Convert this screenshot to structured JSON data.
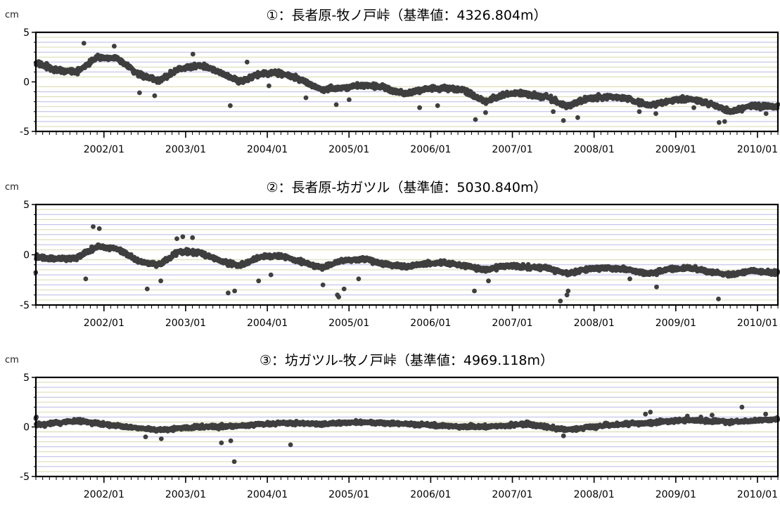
{
  "chart_data": [
    {
      "type": "scatter",
      "title": "①：長者原-牧ノ戸峠（基準値：4326.804m）",
      "ylabel": "cm",
      "ylim": [
        -5,
        5
      ],
      "y_ticks": [
        "5",
        "0",
        "-5"
      ],
      "x_range": [
        "2001-03",
        "2010-04"
      ],
      "x_tick_labels": [
        "2002/01",
        "2003/01",
        "2004/01",
        "2005/01",
        "2006/01",
        "2007/01",
        "2008/01",
        "2009/01",
        "2010/01"
      ],
      "grid": true,
      "marker_color": "#3f3f3f",
      "series": [
        {
          "trend_points": [
            [
              "2001-03",
              1.9
            ],
            [
              "2001-06",
              1.2
            ],
            [
              "2001-09",
              1.0
            ],
            [
              "2001-12",
              2.5
            ],
            [
              "2002-03",
              2.4
            ],
            [
              "2002-06",
              0.8
            ],
            [
              "2002-09",
              0.1
            ],
            [
              "2002-12",
              1.3
            ],
            [
              "2003-03",
              1.7
            ],
            [
              "2003-06",
              1.0
            ],
            [
              "2003-09",
              0.0
            ],
            [
              "2003-12",
              0.8
            ],
            [
              "2004-03",
              0.9
            ],
            [
              "2004-06",
              0.2
            ],
            [
              "2004-09",
              -0.8
            ],
            [
              "2004-12",
              -0.6
            ],
            [
              "2005-03",
              -0.3
            ],
            [
              "2005-06",
              -0.5
            ],
            [
              "2005-09",
              -1.2
            ],
            [
              "2005-12",
              -0.7
            ],
            [
              "2006-03",
              -0.6
            ],
            [
              "2006-06",
              -0.9
            ],
            [
              "2006-09",
              -2.0
            ],
            [
              "2006-12",
              -1.2
            ],
            [
              "2007-03",
              -1.2
            ],
            [
              "2007-06",
              -1.5
            ],
            [
              "2007-09",
              -2.5
            ],
            [
              "2007-12",
              -1.7
            ],
            [
              "2008-03",
              -1.5
            ],
            [
              "2008-06",
              -1.7
            ],
            [
              "2008-09",
              -2.4
            ],
            [
              "2008-12",
              -1.9
            ],
            [
              "2009-03",
              -1.7
            ],
            [
              "2009-06",
              -2.2
            ],
            [
              "2009-09",
              -3.0
            ],
            [
              "2009-12",
              -2.4
            ],
            [
              "2010-04",
              -2.5
            ]
          ],
          "scatter_cm": 0.4,
          "outliers": [
            [
              "2001-10",
              3.9
            ],
            [
              "2002-02",
              3.6
            ],
            [
              "2002-06",
              -1.1
            ],
            [
              "2002-08",
              -1.4
            ],
            [
              "2003-02",
              2.8
            ],
            [
              "2003-07",
              -2.4
            ],
            [
              "2003-10",
              2.0
            ],
            [
              "2004-01",
              -0.4
            ],
            [
              "2004-06",
              -1.6
            ],
            [
              "2004-11",
              -2.3
            ],
            [
              "2005-01",
              -1.8
            ],
            [
              "2005-11",
              -2.6
            ],
            [
              "2006-02",
              -2.4
            ],
            [
              "2006-07",
              -3.8
            ],
            [
              "2006-09",
              -3.1
            ],
            [
              "2007-07",
              -3.0
            ],
            [
              "2007-08",
              -3.9
            ],
            [
              "2007-10",
              -3.6
            ],
            [
              "2008-07",
              -3.0
            ],
            [
              "2008-10",
              -3.2
            ],
            [
              "2009-03",
              -2.6
            ],
            [
              "2009-07",
              -4.1
            ],
            [
              "2009-08",
              -4.0
            ],
            [
              "2010-02",
              -3.2
            ]
          ]
        }
      ]
    },
    {
      "type": "scatter",
      "title": "②：長者原-坊ガツル（基準値：5030.840m）",
      "ylabel": "cm",
      "ylim": [
        -5,
        5
      ],
      "y_ticks": [
        "5",
        "0",
        "-5"
      ],
      "x_range": [
        "2001-03",
        "2010-04"
      ],
      "x_tick_labels": [
        "2002/01",
        "2003/01",
        "2004/01",
        "2005/01",
        "2006/01",
        "2007/01",
        "2008/01",
        "2009/01",
        "2010/01"
      ],
      "grid": true,
      "marker_color": "#3f3f3f",
      "series": [
        {
          "trend_points": [
            [
              "2001-03",
              -0.2
            ],
            [
              "2001-06",
              -0.4
            ],
            [
              "2001-09",
              -0.3
            ],
            [
              "2001-12",
              0.8
            ],
            [
              "2002-03",
              0.6
            ],
            [
              "2002-06",
              -0.6
            ],
            [
              "2002-09",
              -1.0
            ],
            [
              "2002-12",
              0.3
            ],
            [
              "2003-03",
              0.2
            ],
            [
              "2003-06",
              -0.6
            ],
            [
              "2003-09",
              -1.1
            ],
            [
              "2003-12",
              -0.2
            ],
            [
              "2004-03",
              -0.1
            ],
            [
              "2004-06",
              -0.7
            ],
            [
              "2004-09",
              -1.3
            ],
            [
              "2004-12",
              -0.6
            ],
            [
              "2005-03",
              -0.4
            ],
            [
              "2005-06",
              -0.9
            ],
            [
              "2005-09",
              -1.2
            ],
            [
              "2005-12",
              -0.9
            ],
            [
              "2006-03",
              -0.8
            ],
            [
              "2006-06",
              -1.1
            ],
            [
              "2006-09",
              -1.5
            ],
            [
              "2006-12",
              -1.1
            ],
            [
              "2007-03",
              -1.2
            ],
            [
              "2007-06",
              -1.3
            ],
            [
              "2007-09",
              -1.9
            ],
            [
              "2007-12",
              -1.4
            ],
            [
              "2008-03",
              -1.3
            ],
            [
              "2008-06",
              -1.5
            ],
            [
              "2008-09",
              -1.9
            ],
            [
              "2008-12",
              -1.4
            ],
            [
              "2009-03",
              -1.3
            ],
            [
              "2009-06",
              -1.7
            ],
            [
              "2009-09",
              -2.0
            ],
            [
              "2009-12",
              -1.6
            ],
            [
              "2010-04",
              -1.8
            ]
          ],
          "scatter_cm": 0.35,
          "outliers": [
            [
              "2001-11",
              2.8
            ],
            [
              "2001-12",
              2.6
            ],
            [
              "2001-10",
              -2.4
            ],
            [
              "2002-07",
              -3.4
            ],
            [
              "2002-09",
              -2.6
            ],
            [
              "2002-11",
              1.6
            ],
            [
              "2002-12",
              1.8
            ],
            [
              "2003-02",
              1.7
            ],
            [
              "2003-07",
              -3.8
            ],
            [
              "2003-08",
              -3.6
            ],
            [
              "2003-11",
              -2.6
            ],
            [
              "2004-01",
              -2.0
            ],
            [
              "2004-09",
              -3.0
            ],
            [
              "2004-11",
              -4.0
            ],
            [
              "2004-11",
              -4.2
            ],
            [
              "2004-12",
              -3.4
            ],
            [
              "2005-02",
              -2.4
            ],
            [
              "2006-07",
              -3.6
            ],
            [
              "2006-09",
              -2.6
            ],
            [
              "2007-08",
              -4.6
            ],
            [
              "2007-09",
              -3.6
            ],
            [
              "2007-09",
              -4.0
            ],
            [
              "2008-06",
              -2.4
            ],
            [
              "2008-10",
              -3.2
            ],
            [
              "2009-07",
              -4.4
            ]
          ]
        }
      ]
    },
    {
      "type": "scatter",
      "title": "③：坊ガツル-牧ノ戸峠（基準値：4969.118m）",
      "ylabel": "cm",
      "ylim": [
        -5,
        5
      ],
      "y_ticks": [
        "5",
        "0",
        "-5"
      ],
      "x_range": [
        "2001-03",
        "2010-04"
      ],
      "x_tick_labels": [
        "2002/01",
        "2003/01",
        "2004/01",
        "2005/01",
        "2006/01",
        "2007/01",
        "2008/01",
        "2009/01",
        "2010/01"
      ],
      "grid": true,
      "marker_color": "#3f3f3f",
      "series": [
        {
          "trend_points": [
            [
              "2001-03",
              0.2
            ],
            [
              "2001-09",
              0.6
            ],
            [
              "2002-03",
              0.1
            ],
            [
              "2002-09",
              -0.3
            ],
            [
              "2003-03",
              0.0
            ],
            [
              "2003-09",
              0.1
            ],
            [
              "2004-03",
              0.4
            ],
            [
              "2004-09",
              0.3
            ],
            [
              "2005-03",
              0.5
            ],
            [
              "2005-09",
              0.3
            ],
            [
              "2006-03",
              0.1
            ],
            [
              "2006-09",
              0.0
            ],
            [
              "2007-03",
              0.3
            ],
            [
              "2007-09",
              -0.3
            ],
            [
              "2008-03",
              0.2
            ],
            [
              "2008-09",
              0.4
            ],
            [
              "2009-03",
              0.7
            ],
            [
              "2009-09",
              0.5
            ],
            [
              "2010-04",
              0.8
            ]
          ],
          "scatter_cm": 0.3,
          "outliers": [
            [
              "2001-03",
              1.0
            ],
            [
              "2002-07",
              -1.0
            ],
            [
              "2002-09",
              -1.2
            ],
            [
              "2003-06",
              -1.6
            ],
            [
              "2003-07",
              -1.4
            ],
            [
              "2003-08",
              -3.5
            ],
            [
              "2004-04",
              -1.8
            ],
            [
              "2007-08",
              -0.9
            ],
            [
              "2008-08",
              1.3
            ],
            [
              "2008-09",
              1.5
            ],
            [
              "2009-02",
              1.1
            ],
            [
              "2009-04",
              1.0
            ],
            [
              "2009-06",
              1.2
            ],
            [
              "2009-10",
              2.0
            ],
            [
              "2010-02",
              1.3
            ]
          ]
        }
      ]
    }
  ]
}
